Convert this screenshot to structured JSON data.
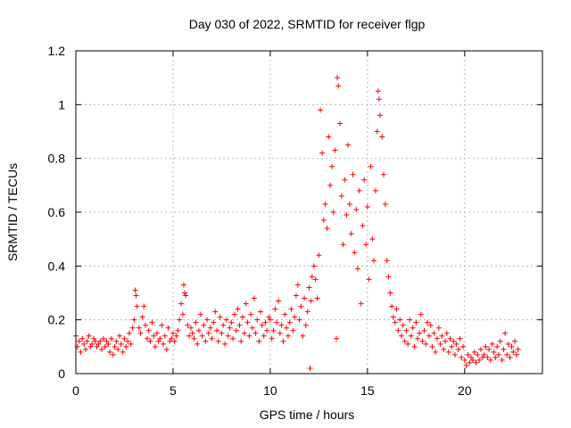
{
  "chart_data": {
    "type": "scatter",
    "title": "Day 030 of 2022, SRMTID for receiver flgp",
    "xlabel": "GPS time / hours",
    "ylabel": "SRMTID / TECUs",
    "xlim": [
      0,
      24
    ],
    "ylim": [
      0,
      1.2
    ],
    "xticks": [
      0,
      5,
      10,
      15,
      20
    ],
    "xtick_labels": [
      "0",
      "5",
      "10",
      "15",
      "20"
    ],
    "yticks": [
      0,
      0.2,
      0.4,
      0.6,
      0.8,
      1.0,
      1.2
    ],
    "ytick_labels": [
      "0",
      "0.2",
      "0.4",
      "0.6",
      "0.8",
      "1",
      "1.2"
    ],
    "grid": true,
    "marker": "plus",
    "color": "#ff0000",
    "series": [
      {
        "name": "SRMTID",
        "x": [
          0.0,
          0.08,
          0.17,
          0.25,
          0.33,
          0.42,
          0.5,
          0.58,
          0.67,
          0.75,
          0.83,
          0.92,
          1.0,
          1.08,
          1.17,
          1.25,
          1.33,
          1.42,
          1.5,
          1.58,
          1.67,
          1.75,
          1.83,
          1.92,
          2.0,
          2.08,
          2.17,
          2.25,
          2.33,
          2.42,
          2.5,
          2.58,
          2.67,
          2.75,
          2.83,
          2.92,
          3.0,
          3.05,
          3.1,
          3.15,
          3.25,
          3.33,
          3.42,
          3.5,
          3.58,
          3.67,
          3.75,
          3.83,
          3.92,
          4.0,
          4.08,
          4.17,
          4.25,
          4.33,
          4.42,
          4.5,
          4.58,
          4.67,
          4.75,
          4.83,
          4.92,
          5.0,
          5.08,
          5.17,
          5.25,
          5.33,
          5.42,
          5.5,
          5.55,
          5.6,
          5.65,
          5.75,
          5.83,
          5.92,
          6.0,
          6.08,
          6.17,
          6.25,
          6.33,
          6.42,
          6.5,
          6.58,
          6.67,
          6.75,
          6.83,
          6.92,
          7.0,
          7.08,
          7.17,
          7.25,
          7.33,
          7.42,
          7.5,
          7.58,
          7.67,
          7.75,
          7.83,
          7.92,
          8.0,
          8.08,
          8.17,
          8.25,
          8.33,
          8.42,
          8.5,
          8.58,
          8.67,
          8.75,
          8.83,
          8.92,
          9.0,
          9.08,
          9.17,
          9.25,
          9.33,
          9.42,
          9.5,
          9.58,
          9.67,
          9.75,
          9.83,
          9.92,
          10.0,
          10.08,
          10.17,
          10.25,
          10.33,
          10.42,
          10.5,
          10.58,
          10.67,
          10.75,
          10.83,
          10.92,
          11.0,
          11.08,
          11.17,
          11.25,
          11.33,
          11.42,
          11.5,
          11.58,
          11.67,
          11.75,
          11.83,
          11.92,
          12.0,
          12.05,
          12.1,
          12.15,
          12.25,
          12.33,
          12.42,
          12.5,
          12.58,
          12.67,
          12.75,
          12.83,
          12.92,
          13.0,
          13.08,
          13.17,
          13.25,
          13.33,
          13.4,
          13.45,
          13.5,
          13.58,
          13.67,
          13.75,
          13.83,
          13.92,
          14.0,
          14.08,
          14.17,
          14.25,
          14.33,
          14.42,
          14.5,
          14.58,
          14.67,
          14.75,
          14.83,
          14.92,
          15.0,
          15.08,
          15.17,
          15.25,
          15.33,
          15.42,
          15.5,
          15.55,
          15.6,
          15.65,
          15.75,
          15.83,
          15.92,
          16.0,
          16.08,
          16.17,
          16.25,
          16.33,
          16.42,
          16.5,
          16.58,
          16.67,
          16.75,
          16.83,
          16.92,
          17.0,
          17.08,
          17.17,
          17.25,
          17.33,
          17.42,
          17.5,
          17.58,
          17.67,
          17.75,
          17.83,
          17.92,
          18.0,
          18.08,
          18.17,
          18.25,
          18.33,
          18.42,
          18.5,
          18.58,
          18.67,
          18.75,
          18.83,
          18.92,
          19.0,
          19.08,
          19.17,
          19.25,
          19.33,
          19.42,
          19.5,
          19.58,
          19.67,
          19.75,
          19.83,
          19.92,
          20.0,
          20.08,
          20.17,
          20.25,
          20.33,
          20.42,
          20.5,
          20.58,
          20.67,
          20.75,
          20.83,
          20.92,
          21.0,
          21.08,
          21.17,
          21.25,
          21.33,
          21.42,
          21.5,
          21.58,
          21.67,
          21.75,
          21.83,
          21.92,
          22.0,
          22.08,
          22.17,
          22.25,
          22.33,
          22.42,
          22.5,
          22.58,
          22.67,
          22.75
        ],
        "y": [
          0.14,
          0.1,
          0.12,
          0.08,
          0.13,
          0.11,
          0.09,
          0.12,
          0.14,
          0.1,
          0.11,
          0.13,
          0.12,
          0.1,
          0.11,
          0.12,
          0.09,
          0.13,
          0.1,
          0.12,
          0.11,
          0.08,
          0.13,
          0.07,
          0.1,
          0.12,
          0.09,
          0.14,
          0.11,
          0.08,
          0.13,
          0.1,
          0.12,
          0.15,
          0.11,
          0.17,
          0.2,
          0.31,
          0.29,
          0.25,
          0.17,
          0.15,
          0.21,
          0.25,
          0.18,
          0.13,
          0.16,
          0.12,
          0.19,
          0.14,
          0.1,
          0.15,
          0.12,
          0.13,
          0.18,
          0.11,
          0.14,
          0.09,
          0.17,
          0.12,
          0.13,
          0.15,
          0.12,
          0.14,
          0.16,
          0.2,
          0.26,
          0.22,
          0.33,
          0.3,
          0.29,
          0.18,
          0.14,
          0.17,
          0.15,
          0.13,
          0.19,
          0.11,
          0.16,
          0.22,
          0.14,
          0.18,
          0.12,
          0.2,
          0.15,
          0.17,
          0.13,
          0.19,
          0.23,
          0.16,
          0.12,
          0.21,
          0.15,
          0.18,
          0.11,
          0.2,
          0.14,
          0.17,
          0.19,
          0.13,
          0.22,
          0.16,
          0.24,
          0.18,
          0.12,
          0.21,
          0.15,
          0.26,
          0.19,
          0.14,
          0.22,
          0.17,
          0.28,
          0.15,
          0.2,
          0.12,
          0.23,
          0.18,
          0.14,
          0.19,
          0.16,
          0.21,
          0.2,
          0.13,
          0.16,
          0.24,
          0.19,
          0.27,
          0.15,
          0.18,
          0.12,
          0.22,
          0.17,
          0.14,
          0.19,
          0.24,
          0.16,
          0.21,
          0.29,
          0.33,
          0.2,
          0.25,
          0.14,
          0.28,
          0.18,
          0.23,
          0.32,
          0.02,
          0.27,
          0.36,
          0.4,
          0.35,
          0.28,
          0.44,
          0.98,
          0.82,
          0.57,
          0.63,
          0.54,
          0.88,
          0.7,
          0.77,
          0.6,
          0.83,
          0.13,
          1.1,
          1.07,
          0.93,
          0.66,
          0.48,
          0.72,
          0.59,
          0.85,
          0.63,
          0.52,
          0.74,
          0.45,
          0.61,
          0.39,
          0.68,
          0.26,
          0.55,
          0.72,
          0.48,
          0.62,
          0.35,
          0.77,
          0.5,
          0.42,
          0.68,
          0.9,
          1.05,
          1.02,
          0.96,
          0.88,
          0.74,
          0.63,
          0.42,
          0.36,
          0.3,
          0.25,
          0.21,
          0.19,
          0.24,
          0.16,
          0.2,
          0.14,
          0.18,
          0.12,
          0.16,
          0.11,
          0.2,
          0.14,
          0.17,
          0.1,
          0.19,
          0.13,
          0.15,
          0.22,
          0.12,
          0.16,
          0.11,
          0.19,
          0.14,
          0.18,
          0.1,
          0.15,
          0.08,
          0.13,
          0.17,
          0.11,
          0.14,
          0.09,
          0.12,
          0.15,
          0.08,
          0.13,
          0.1,
          0.12,
          0.07,
          0.11,
          0.09,
          0.13,
          0.06,
          0.1,
          0.05,
          0.03,
          0.07,
          0.04,
          0.06,
          0.05,
          0.08,
          0.04,
          0.07,
          0.05,
          0.09,
          0.06,
          0.07,
          0.1,
          0.06,
          0.09,
          0.05,
          0.11,
          0.08,
          0.06,
          0.1,
          0.07,
          0.12,
          0.05,
          0.09,
          0.15,
          0.07,
          0.11,
          0.06,
          0.1,
          0.08,
          0.12,
          0.07,
          0.09
        ]
      }
    ]
  }
}
